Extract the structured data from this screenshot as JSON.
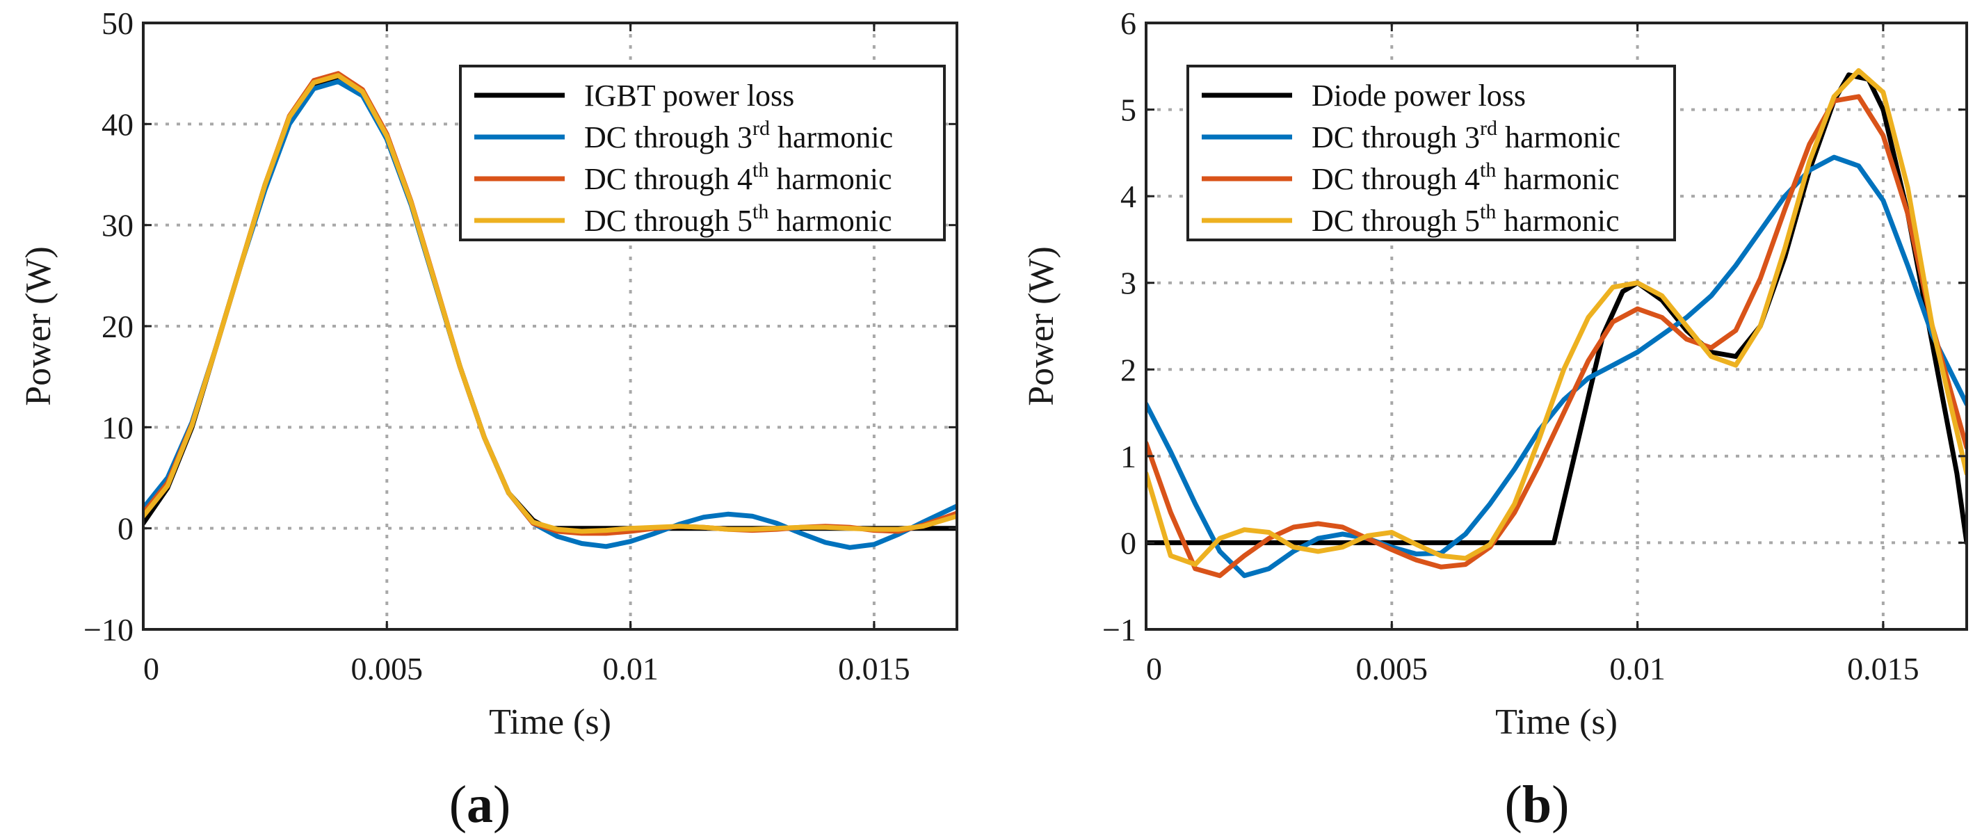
{
  "chart_data": [
    {
      "type": "line",
      "panel_label": "a",
      "xlabel": "Time (s)",
      "ylabel": "Power (W)",
      "xlim": [
        0,
        0.0167
      ],
      "ylim": [
        -10,
        50
      ],
      "xticks": [
        0,
        0.005,
        0.01,
        0.015
      ],
      "xtick_labels": [
        "0",
        "0.005",
        "0.01",
        "0.015"
      ],
      "yticks": [
        -10,
        0,
        10,
        20,
        30,
        40,
        50
      ],
      "ytick_labels": [
        "−10",
        "0",
        "10",
        "20",
        "30",
        "40",
        "50"
      ],
      "grid": true,
      "legend_position": "top-right",
      "series": [
        {
          "name": "IGBT power loss",
          "label_main": "IGBT power loss",
          "label_sup": "",
          "label_tail": "",
          "color": "#000000",
          "x": [
            0,
            0.0005,
            0.001,
            0.0015,
            0.002,
            0.0025,
            0.003,
            0.0035,
            0.004,
            0.0045,
            0.005,
            0.0055,
            0.006,
            0.0065,
            0.007,
            0.0075,
            0.008,
            0.0083,
            0.009,
            0.01,
            0.011,
            0.012,
            0.013,
            0.014,
            0.015,
            0.016,
            0.0167
          ],
          "y": [
            0.5,
            4,
            10,
            18,
            26,
            34,
            40.5,
            43.8,
            44.6,
            43,
            38.5,
            32,
            24,
            16,
            9,
            3.5,
            0.8,
            0,
            0,
            0,
            0,
            0,
            0,
            0,
            0,
            0,
            0
          ]
        },
        {
          "name": "DC through 3rd harmonic",
          "label_main": "DC through 3",
          "label_sup": "rd",
          "label_tail": " harmonic",
          "color": "#0072BD",
          "x": [
            0,
            0.0005,
            0.001,
            0.0015,
            0.002,
            0.0025,
            0.003,
            0.0035,
            0.004,
            0.0045,
            0.005,
            0.0055,
            0.006,
            0.0065,
            0.007,
            0.0075,
            0.008,
            0.0085,
            0.009,
            0.0095,
            0.01,
            0.0105,
            0.011,
            0.0115,
            0.012,
            0.0125,
            0.013,
            0.0135,
            0.014,
            0.0145,
            0.015,
            0.0155,
            0.016,
            0.0167
          ],
          "y": [
            2,
            5,
            10.5,
            18,
            26,
            33.5,
            40,
            43.5,
            44.2,
            42.8,
            38.5,
            32,
            24,
            16,
            9,
            3.5,
            0.5,
            -0.8,
            -1.5,
            -1.8,
            -1.3,
            -0.5,
            0.4,
            1.1,
            1.4,
            1.2,
            0.5,
            -0.5,
            -1.4,
            -1.9,
            -1.6,
            -0.6,
            0.6,
            2.2
          ]
        },
        {
          "name": "DC through 4th harmonic",
          "label_main": "DC through 4",
          "label_sup": "th",
          "label_tail": " harmonic",
          "color": "#D95319",
          "x": [
            0,
            0.0005,
            0.001,
            0.0015,
            0.002,
            0.0025,
            0.003,
            0.0035,
            0.004,
            0.0045,
            0.005,
            0.0055,
            0.006,
            0.0065,
            0.007,
            0.0075,
            0.008,
            0.0085,
            0.009,
            0.0095,
            0.01,
            0.0105,
            0.011,
            0.0115,
            0.012,
            0.0125,
            0.013,
            0.0135,
            0.014,
            0.0145,
            0.015,
            0.0155,
            0.016,
            0.0167
          ],
          "y": [
            1.5,
            4.5,
            10.3,
            18,
            26,
            34,
            40.8,
            44.3,
            45,
            43.4,
            39,
            32.3,
            24.2,
            16,
            9,
            3.5,
            0.5,
            -0.3,
            -0.5,
            -0.5,
            -0.3,
            0,
            0.2,
            0.1,
            -0.1,
            -0.2,
            -0.1,
            0.1,
            0.2,
            0.1,
            -0.2,
            -0.3,
            0.3,
            1.5
          ]
        },
        {
          "name": "DC through 5th harmonic",
          "label_main": "DC through 5",
          "label_sup": "th",
          "label_tail": " harmonic",
          "color": "#EDB120",
          "x": [
            0,
            0.0005,
            0.001,
            0.0015,
            0.002,
            0.0025,
            0.003,
            0.0035,
            0.004,
            0.0045,
            0.005,
            0.0055,
            0.006,
            0.0065,
            0.007,
            0.0075,
            0.008,
            0.0085,
            0.009,
            0.0095,
            0.01,
            0.0105,
            0.011,
            0.0115,
            0.012,
            0.0125,
            0.013,
            0.0135,
            0.014,
            0.0145,
            0.015,
            0.0155,
            0.016,
            0.0167
          ],
          "y": [
            1.2,
            4.2,
            10.2,
            18,
            26,
            34,
            40.7,
            44.1,
            44.8,
            43.2,
            38.8,
            32.2,
            24.1,
            16,
            9,
            3.5,
            0.6,
            -0.1,
            -0.3,
            -0.2,
            0,
            0.1,
            0.2,
            0.1,
            -0.1,
            -0.1,
            0,
            0.1,
            0.1,
            0,
            -0.1,
            -0.1,
            0.2,
            1.2
          ]
        }
      ]
    },
    {
      "type": "line",
      "panel_label": "b",
      "xlabel": "Time (s)",
      "ylabel": "Power (W)",
      "xlim": [
        0,
        0.0167
      ],
      "ylim": [
        -1,
        6
      ],
      "xticks": [
        0,
        0.005,
        0.01,
        0.015
      ],
      "xtick_labels": [
        "0",
        "0.005",
        "0.01",
        "0.015"
      ],
      "yticks": [
        -1,
        0,
        1,
        2,
        3,
        4,
        5,
        6
      ],
      "ytick_labels": [
        "−1",
        "0",
        "1",
        "2",
        "3",
        "4",
        "5",
        "6"
      ],
      "grid": true,
      "legend_position": "top-left",
      "series": [
        {
          "name": "Diode power loss",
          "label_main": "Diode power loss",
          "label_sup": "",
          "label_tail": "",
          "color": "#000000",
          "x": [
            0,
            0.001,
            0.002,
            0.003,
            0.004,
            0.005,
            0.006,
            0.007,
            0.008,
            0.0083,
            0.0088,
            0.0093,
            0.0097,
            0.01,
            0.0105,
            0.011,
            0.0115,
            0.012,
            0.0125,
            0.013,
            0.0135,
            0.014,
            0.0143,
            0.0147,
            0.015,
            0.0155,
            0.016,
            0.0165,
            0.0167
          ],
          "y": [
            0,
            0,
            0,
            0,
            0,
            0,
            0,
            0,
            0,
            0,
            1.2,
            2.4,
            2.9,
            3.0,
            2.8,
            2.45,
            2.2,
            2.15,
            2.5,
            3.3,
            4.3,
            5.1,
            5.4,
            5.35,
            5.0,
            3.8,
            2.3,
            0.8,
            0
          ]
        },
        {
          "name": "DC through 3rd harmonic",
          "label_main": "DC through 3",
          "label_sup": "rd",
          "label_tail": " harmonic",
          "color": "#0072BD",
          "x": [
            0,
            0.0005,
            0.001,
            0.0015,
            0.002,
            0.0025,
            0.003,
            0.0035,
            0.004,
            0.0045,
            0.005,
            0.0055,
            0.006,
            0.0065,
            0.007,
            0.0075,
            0.008,
            0.0085,
            0.009,
            0.0095,
            0.01,
            0.0105,
            0.011,
            0.0115,
            0.012,
            0.0125,
            0.013,
            0.0135,
            0.014,
            0.0145,
            0.015,
            0.0155,
            0.016,
            0.0167
          ],
          "y": [
            1.6,
            1.05,
            0.45,
            -0.1,
            -0.38,
            -0.3,
            -0.1,
            0.05,
            0.1,
            0.05,
            -0.05,
            -0.13,
            -0.12,
            0.1,
            0.45,
            0.85,
            1.3,
            1.65,
            1.9,
            2.05,
            2.2,
            2.4,
            2.6,
            2.85,
            3.2,
            3.6,
            4.0,
            4.3,
            4.45,
            4.35,
            3.95,
            3.2,
            2.4,
            1.6
          ]
        },
        {
          "name": "DC through 4th harmonic",
          "label_main": "DC through 4",
          "label_sup": "th",
          "label_tail": " harmonic",
          "color": "#D95319",
          "x": [
            0,
            0.0005,
            0.001,
            0.0015,
            0.002,
            0.0025,
            0.003,
            0.0035,
            0.004,
            0.0045,
            0.005,
            0.0055,
            0.006,
            0.0065,
            0.007,
            0.0075,
            0.008,
            0.0085,
            0.009,
            0.0095,
            0.01,
            0.0105,
            0.011,
            0.0115,
            0.012,
            0.0125,
            0.013,
            0.0135,
            0.014,
            0.0145,
            0.015,
            0.0155,
            0.016,
            0.0167
          ],
          "y": [
            1.15,
            0.35,
            -0.3,
            -0.38,
            -0.15,
            0.05,
            0.18,
            0.22,
            0.18,
            0.05,
            -0.08,
            -0.2,
            -0.28,
            -0.25,
            -0.05,
            0.35,
            0.9,
            1.5,
            2.1,
            2.55,
            2.7,
            2.6,
            2.35,
            2.25,
            2.45,
            3.05,
            3.85,
            4.6,
            5.1,
            5.15,
            4.7,
            3.8,
            2.5,
            1.1
          ]
        },
        {
          "name": "DC through 5th harmonic",
          "label_main": "DC through 5",
          "label_sup": "th",
          "label_tail": " harmonic",
          "color": "#EDB120",
          "x": [
            0,
            0.0005,
            0.001,
            0.0015,
            0.002,
            0.0025,
            0.003,
            0.0035,
            0.004,
            0.0045,
            0.005,
            0.0055,
            0.006,
            0.0065,
            0.007,
            0.0075,
            0.008,
            0.0085,
            0.009,
            0.0095,
            0.01,
            0.0105,
            0.011,
            0.0115,
            0.012,
            0.0125,
            0.013,
            0.0135,
            0.014,
            0.0145,
            0.015,
            0.0155,
            0.016,
            0.0167
          ],
          "y": [
            0.8,
            -0.15,
            -0.25,
            0.05,
            0.15,
            0.12,
            -0.05,
            -0.1,
            -0.05,
            0.08,
            0.12,
            -0.02,
            -0.15,
            -0.18,
            -0.02,
            0.45,
            1.2,
            2.0,
            2.6,
            2.95,
            3.0,
            2.85,
            2.5,
            2.15,
            2.05,
            2.5,
            3.4,
            4.4,
            5.15,
            5.45,
            5.2,
            4.1,
            2.5,
            0.8
          ]
        }
      ]
    }
  ]
}
